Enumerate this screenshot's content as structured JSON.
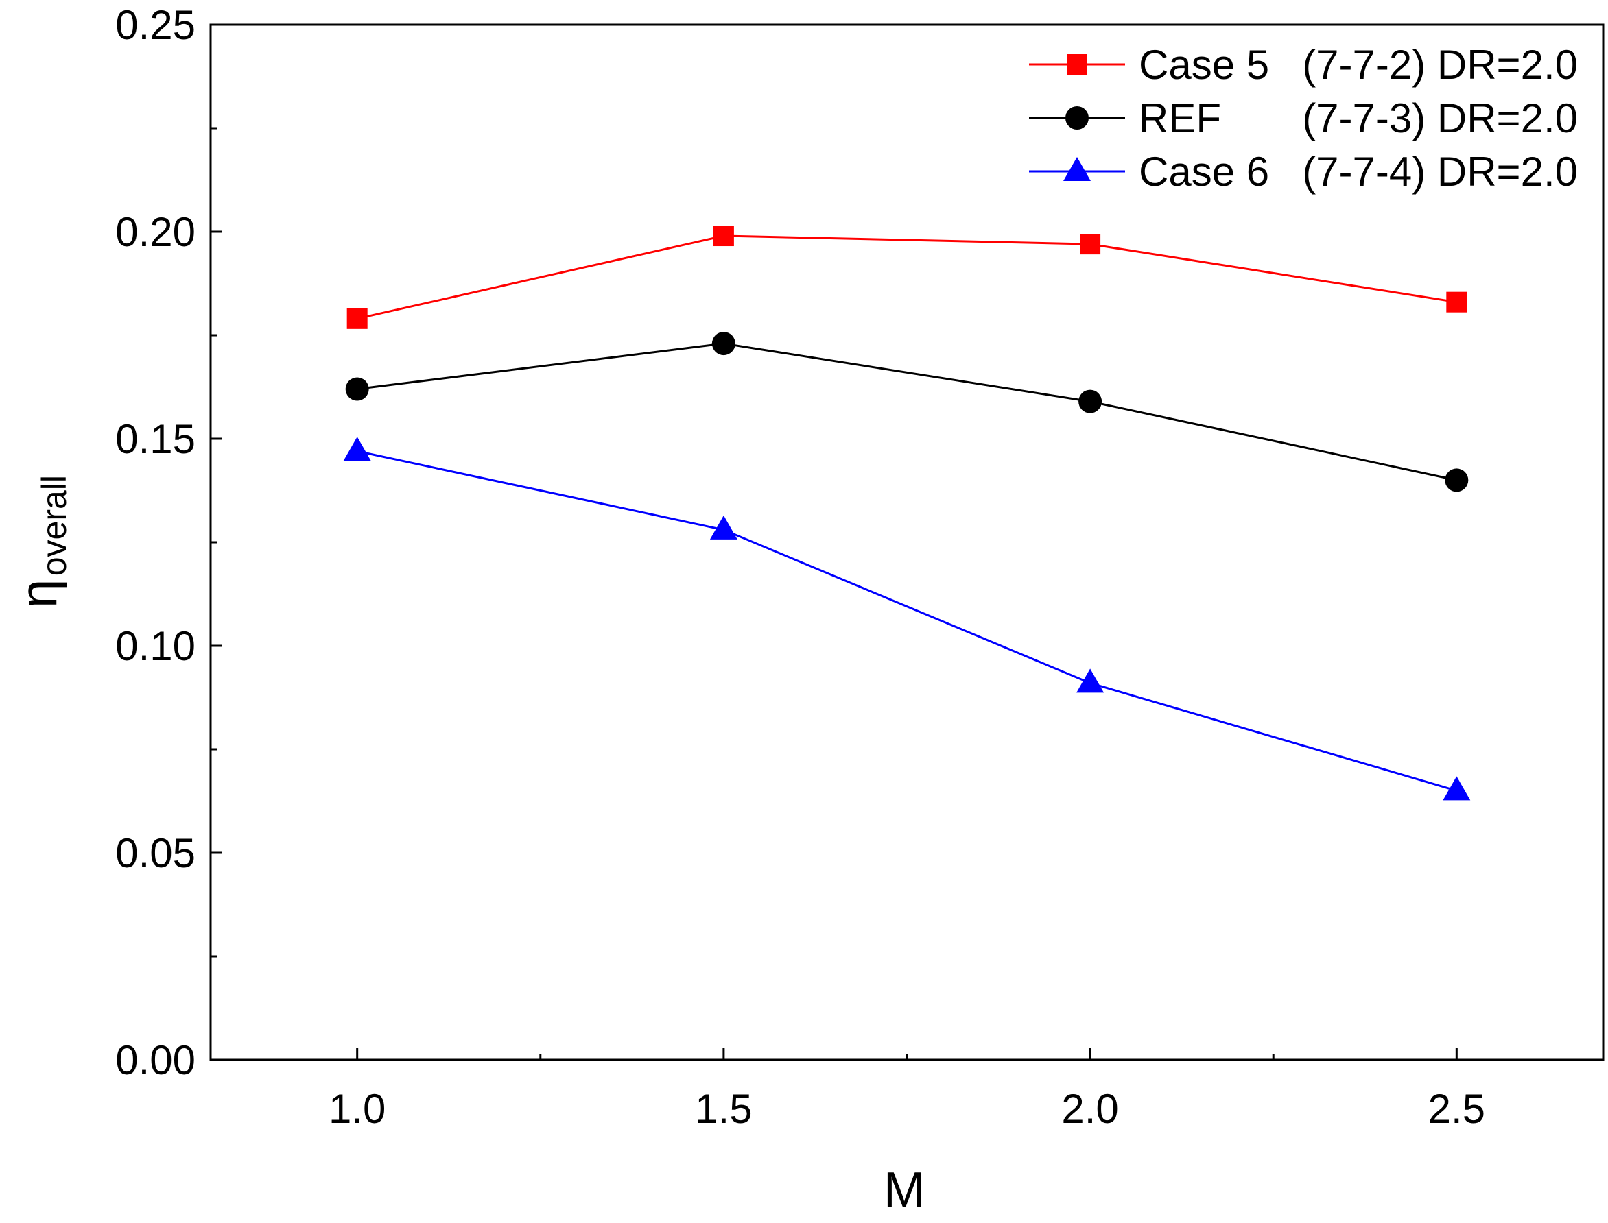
{
  "chart_data": {
    "type": "line",
    "title": "",
    "xlabel": "M",
    "ylabel": "η",
    "ylabel_subscript": "overall",
    "xlim": [
      0.8,
      2.7
    ],
    "ylim": [
      0.0,
      0.25
    ],
    "x_ticks": [
      1.0,
      1.5,
      2.0,
      2.5
    ],
    "x_tick_labels": [
      "1.0",
      "1.5",
      "2.0",
      "2.5"
    ],
    "y_ticks": [
      0.0,
      0.05,
      0.1,
      0.15,
      0.2,
      0.25
    ],
    "y_tick_labels": [
      "0.00",
      "0.05",
      "0.10",
      "0.15",
      "0.20",
      "0.25"
    ],
    "grid": false,
    "legend_position": "top-right",
    "series": [
      {
        "name": "Case 5",
        "label_config": "(7-7-2) DR=2.0",
        "color": "#ff0000",
        "marker": "square",
        "x": [
          1.0,
          1.5,
          2.0,
          2.5
        ],
        "values": [
          0.179,
          0.199,
          0.197,
          0.183
        ]
      },
      {
        "name": "REF",
        "label_config": "(7-7-3) DR=2.0",
        "color": "#000000",
        "marker": "circle",
        "x": [
          1.0,
          1.5,
          2.0,
          2.5
        ],
        "values": [
          0.162,
          0.173,
          0.159,
          0.14
        ]
      },
      {
        "name": "Case 6",
        "label_config": "(7-7-4) DR=2.0",
        "color": "#0000ff",
        "marker": "triangle",
        "x": [
          1.0,
          1.5,
          2.0,
          2.5
        ],
        "values": [
          0.147,
          0.128,
          0.091,
          0.065
        ]
      }
    ]
  }
}
